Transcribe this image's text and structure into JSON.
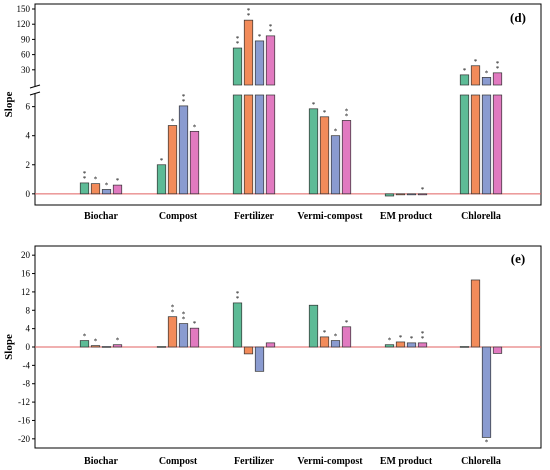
{
  "colors": {
    "s1": "#5dbb96",
    "s2": "#f28b5a",
    "s3": "#8a9bd0",
    "s4": "#e17ac0",
    "zero": "#e06060"
  },
  "chart_data": [
    {
      "type": "bar",
      "panel_label": "(d)",
      "ylabel": "Slope",
      "categories": [
        "Biochar",
        "Compost",
        "Fertilizer",
        "Vermi-compost",
        "EM product",
        "Chlorella"
      ],
      "series": [
        {
          "values": [
            0.75,
            2.0,
            73,
            5.85,
            -0.15,
            20
          ]
        },
        {
          "values": [
            0.7,
            4.7,
            128,
            5.3,
            -0.05,
            38
          ]
        },
        {
          "values": [
            0.3,
            6.05,
            87,
            4.0,
            -0.05,
            15
          ]
        },
        {
          "values": [
            0.6,
            4.3,
            97,
            5.05,
            -0.05,
            24
          ]
        }
      ],
      "stars": [
        [
          "**",
          "*",
          "**",
          "*",
          "",
          "*"
        ],
        [
          "*",
          "*",
          "**",
          "*",
          "",
          "*"
        ],
        [
          "*",
          "**",
          "*",
          "*",
          "",
          "*"
        ],
        [
          "*",
          "*",
          "**",
          "**",
          "*",
          "**"
        ]
      ],
      "broken_axis": {
        "lower_range": [
          -0.7,
          6.8
        ],
        "upper_range": [
          0,
          152
        ]
      },
      "yticks_lower": [
        0,
        2,
        4,
        6
      ],
      "yticks_upper": [
        30,
        60,
        90,
        120,
        150
      ],
      "grid": false
    },
    {
      "type": "bar",
      "panel_label": "(e)",
      "ylabel": "Slope",
      "categories": [
        "Biochar",
        "Compost",
        "Fertilizer",
        "Vermi-compost",
        "EM product",
        "Chlorella"
      ],
      "series": [
        {
          "values": [
            1.4,
            0.1,
            9.6,
            9.1,
            0.5,
            0.1
          ]
        },
        {
          "values": [
            0.3,
            6.6,
            -1.5,
            2.2,
            1.1,
            14.6
          ]
        },
        {
          "values": [
            0.1,
            5.1,
            -5.3,
            1.4,
            0.9,
            -19.7
          ]
        },
        {
          "values": [
            0.5,
            4.1,
            0.9,
            4.4,
            0.9,
            -1.4
          ]
        }
      ],
      "stars": [
        [
          "*",
          "",
          "**",
          "",
          "*",
          ""
        ],
        [
          "*",
          "**",
          "",
          "*",
          "*",
          ""
        ],
        [
          "",
          "**",
          "",
          "*",
          "*",
          "*"
        ],
        [
          "*",
          "*",
          "",
          "*",
          "**",
          ""
        ]
      ],
      "ylim": [
        -22,
        22
      ],
      "yticks": [
        -20,
        -16,
        -12,
        -8,
        -4,
        0,
        4,
        8,
        12,
        16,
        20
      ],
      "grid": false
    }
  ]
}
